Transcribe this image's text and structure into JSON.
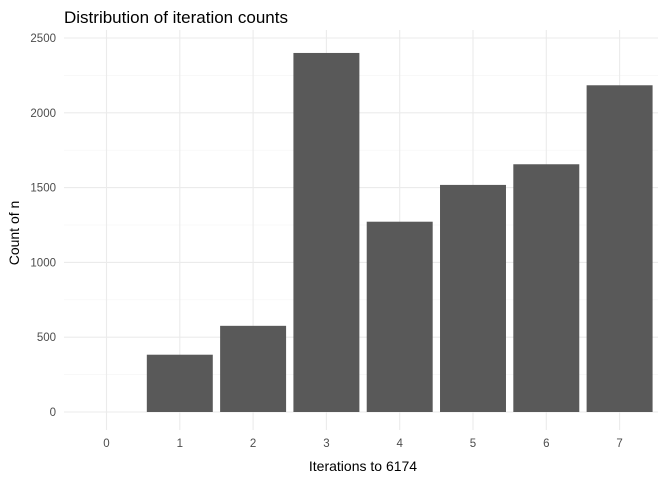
{
  "chart_data": {
    "type": "bar",
    "title": "Distribution of iteration counts",
    "xlabel": "Iterations to 6174",
    "ylabel": "Count of n",
    "categories": [
      "0",
      "1",
      "2",
      "3",
      "4",
      "5",
      "6",
      "7"
    ],
    "values": [
      0,
      383,
      576,
      2400,
      1272,
      1518,
      1656,
      2184
    ],
    "yticks": [
      0,
      500,
      1000,
      1500,
      2000,
      2500
    ],
    "ylim": [
      0,
      2500
    ],
    "grid": true,
    "legend": "none",
    "bar_color": "#595959"
  }
}
